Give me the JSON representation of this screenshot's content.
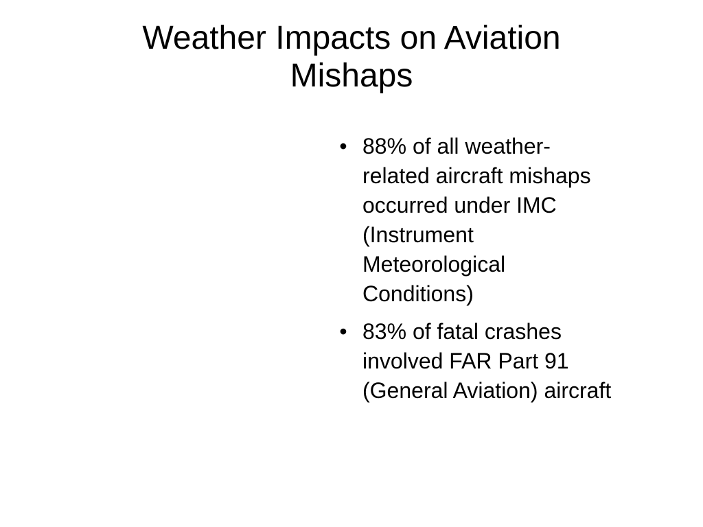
{
  "slide": {
    "title_lines": [
      "Weather Impacts on Aviation",
      "Mishaps"
    ],
    "bullet_symbol": "•",
    "bullets": [
      {
        "lines": [
          "88% of all weather-",
          "related aircraft mishaps",
          "occurred under IMC",
          "(Instrument",
          "Meteorological",
          "Conditions)"
        ]
      },
      {
        "lines": [
          "83% of fatal crashes",
          "involved FAR Part 91",
          "(General Aviation) aircraft"
        ]
      }
    ]
  }
}
